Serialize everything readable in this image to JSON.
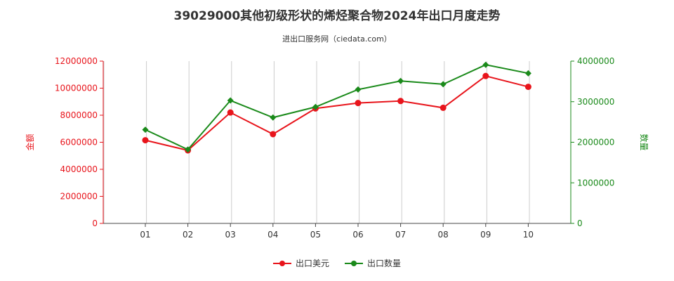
{
  "title": "39029000其他初级形状的烯烃聚合物2024年出口月度走势",
  "subtitle": "进出口服务网（ciedata.com）",
  "colors": {
    "amount": "#e8141b",
    "quantity": "#1a8a1a",
    "grid": "#cccccc",
    "axis": "#444444"
  },
  "chart_data": {
    "type": "line",
    "title": "39029000其他初级形状的烯烃聚合物2024年出口月度走势",
    "categories": [
      "01",
      "02",
      "03",
      "04",
      "05",
      "06",
      "07",
      "08",
      "09",
      "10"
    ],
    "ylabel_left": "金额",
    "ylabel_right": "数量",
    "ylim_left": [
      0,
      12000000
    ],
    "ylim_right": [
      0,
      4000000
    ],
    "yticks_left": [
      "0",
      "2000000",
      "4000000",
      "6000000",
      "8000000",
      "10000000",
      "12000000"
    ],
    "yticks_right": [
      "0",
      "1000000",
      "2000000",
      "3000000",
      "4000000"
    ],
    "grid": "vertical",
    "legend_position": "bottom-center",
    "series": [
      {
        "name": "出口美元",
        "axis": "left",
        "values": [
          6150000,
          5400000,
          8200000,
          6600000,
          8500000,
          8900000,
          9050000,
          8550000,
          10900000,
          10100000
        ]
      },
      {
        "name": "出口数量",
        "axis": "right",
        "values": [
          2310000,
          1820000,
          3030000,
          2610000,
          2870000,
          3300000,
          3510000,
          3430000,
          3910000,
          3700000
        ]
      }
    ]
  }
}
